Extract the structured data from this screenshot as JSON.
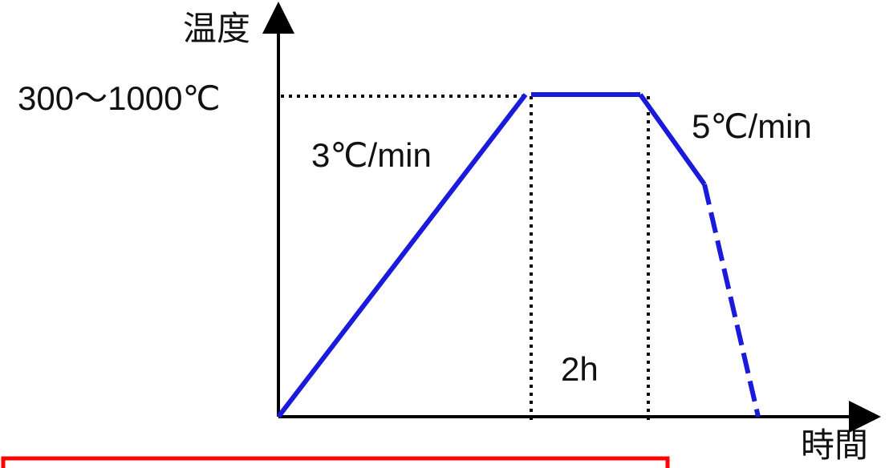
{
  "diagram": {
    "y_axis_label": "温度",
    "x_axis_label": "時間",
    "temperature_label": "300〜1000℃",
    "heating_rate_label": "3℃/min",
    "cooling_rate_label": "5℃/min",
    "hold_time_label": "2h"
  },
  "colors": {
    "profile": "#1a1adc",
    "highlight_box": "#ff0000",
    "axis": "#000000"
  }
}
